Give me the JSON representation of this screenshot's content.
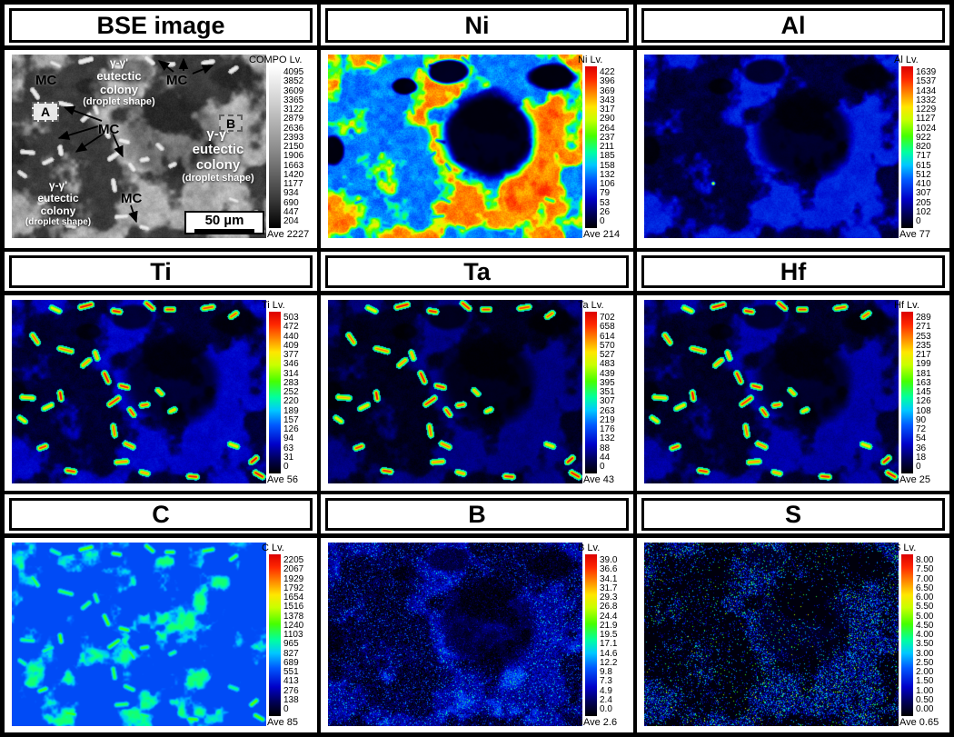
{
  "figure_title": "EPMA elemental mapping figure",
  "palette": {
    "jet_stops": [
      [
        0,
        0,
        0,
        0
      ],
      [
        0.09,
        0,
        0,
        90
      ],
      [
        0.18,
        0,
        0,
        200
      ],
      [
        0.3,
        0,
        90,
        255
      ],
      [
        0.39,
        0,
        200,
        255
      ],
      [
        0.47,
        0,
        255,
        160
      ],
      [
        0.57,
        70,
        255,
        0
      ],
      [
        0.67,
        200,
        255,
        0
      ],
      [
        0.75,
        255,
        230,
        0
      ],
      [
        0.83,
        255,
        140,
        0
      ],
      [
        0.92,
        255,
        40,
        0
      ],
      [
        1,
        220,
        0,
        0
      ]
    ],
    "frame_color": "#000000",
    "background_color": "#ffffff"
  },
  "panels": [
    {
      "id": "bse",
      "title": "BSE image",
      "appearance": "bse",
      "colorbar": {
        "label": "COMPO Lv.",
        "type": "gray",
        "ticks": [
          "4095",
          "3852",
          "3609",
          "3365",
          "3122",
          "2879",
          "2636",
          "2393",
          "2150",
          "1906",
          "1663",
          "1420",
          "1177",
          "934",
          "690",
          "447",
          "204"
        ],
        "ave": "Ave 2227"
      },
      "annotations": {
        "mc_labels": [
          "MC",
          "MC",
          "MC",
          "MC"
        ],
        "colony_top": [
          "γ-γ'",
          "eutectic",
          "colony",
          "(droplet shape)"
        ],
        "colony_right": [
          "γ-γ'",
          "eutectic",
          "colony",
          "(droplet shape)"
        ],
        "colony_bottom_left": [
          "γ-γ'",
          "eutectic",
          "colony",
          "(droplet shape)"
        ],
        "region_a": "A",
        "region_b": "B",
        "scale_bar_label": "50 µm"
      }
    },
    {
      "id": "ni",
      "title": "Ni",
      "appearance": "ni",
      "colorbar": {
        "label": "Ni Lv.",
        "type": "jet",
        "ticks": [
          "422",
          "396",
          "369",
          "343",
          "317",
          "290",
          "264",
          "237",
          "211",
          "185",
          "158",
          "132",
          "106",
          "79",
          "53",
          "26",
          "0"
        ],
        "ave": "Ave 214"
      }
    },
    {
      "id": "al",
      "title": "Al",
      "appearance": "al",
      "colorbar": {
        "label": "Al Lv.",
        "type": "jet",
        "ticks": [
          "1639",
          "1537",
          "1434",
          "1332",
          "1229",
          "1127",
          "1024",
          "922",
          "820",
          "717",
          "615",
          "512",
          "410",
          "307",
          "205",
          "102",
          "0"
        ],
        "ave": "Ave 77"
      }
    },
    {
      "id": "ti",
      "title": "Ti",
      "appearance": "ti",
      "colorbar": {
        "label": "Ti Lv.",
        "type": "jet",
        "ticks": [
          "503",
          "472",
          "440",
          "409",
          "377",
          "346",
          "314",
          "283",
          "252",
          "220",
          "189",
          "157",
          "126",
          "94",
          "63",
          "31",
          "0"
        ],
        "ave": "Ave 56"
      }
    },
    {
      "id": "ta",
      "title": "Ta",
      "appearance": "ta",
      "colorbar": {
        "label": "Ta Lv.",
        "type": "jet",
        "ticks": [
          "702",
          "658",
          "614",
          "570",
          "527",
          "483",
          "439",
          "395",
          "351",
          "307",
          "263",
          "219",
          "176",
          "132",
          "88",
          "44",
          "0"
        ],
        "ave": "Ave 43"
      }
    },
    {
      "id": "hf",
      "title": "Hf",
      "appearance": "hf",
      "colorbar": {
        "label": "Hf Lv.",
        "type": "jet",
        "ticks": [
          "289",
          "271",
          "253",
          "235",
          "217",
          "199",
          "181",
          "163",
          "145",
          "126",
          "108",
          "90",
          "72",
          "54",
          "36",
          "18",
          "0"
        ],
        "ave": "Ave 25"
      }
    },
    {
      "id": "c",
      "title": "C",
      "appearance": "c",
      "colorbar": {
        "label": "C Lv.",
        "type": "jet",
        "ticks": [
          "2205",
          "2067",
          "1929",
          "1792",
          "1654",
          "1516",
          "1378",
          "1240",
          "1103",
          "965",
          "827",
          "689",
          "551",
          "413",
          "276",
          "138",
          "0"
        ],
        "ave": "Ave 85"
      }
    },
    {
      "id": "b",
      "title": "B",
      "appearance": "b",
      "colorbar": {
        "label": "B Lv.",
        "type": "jet",
        "ticks": [
          "39.0",
          "36.6",
          "34.1",
          "31.7",
          "29.3",
          "26.8",
          "24.4",
          "21.9",
          "19.5",
          "17.1",
          "14.6",
          "12.2",
          "9.8",
          "7.3",
          "4.9",
          "2.4",
          "0.0"
        ],
        "ave": "Ave 2.6"
      }
    },
    {
      "id": "s",
      "title": "S",
      "appearance": "s",
      "colorbar": {
        "label": "S Lv.",
        "type": "jet",
        "ticks": [
          "8.00",
          "7.50",
          "7.00",
          "6.50",
          "6.00",
          "5.50",
          "5.00",
          "4.50",
          "4.00",
          "3.50",
          "3.00",
          "2.50",
          "2.00",
          "1.50",
          "1.00",
          "0.50",
          "0.00"
        ],
        "ave": "Ave 0.65"
      }
    }
  ]
}
